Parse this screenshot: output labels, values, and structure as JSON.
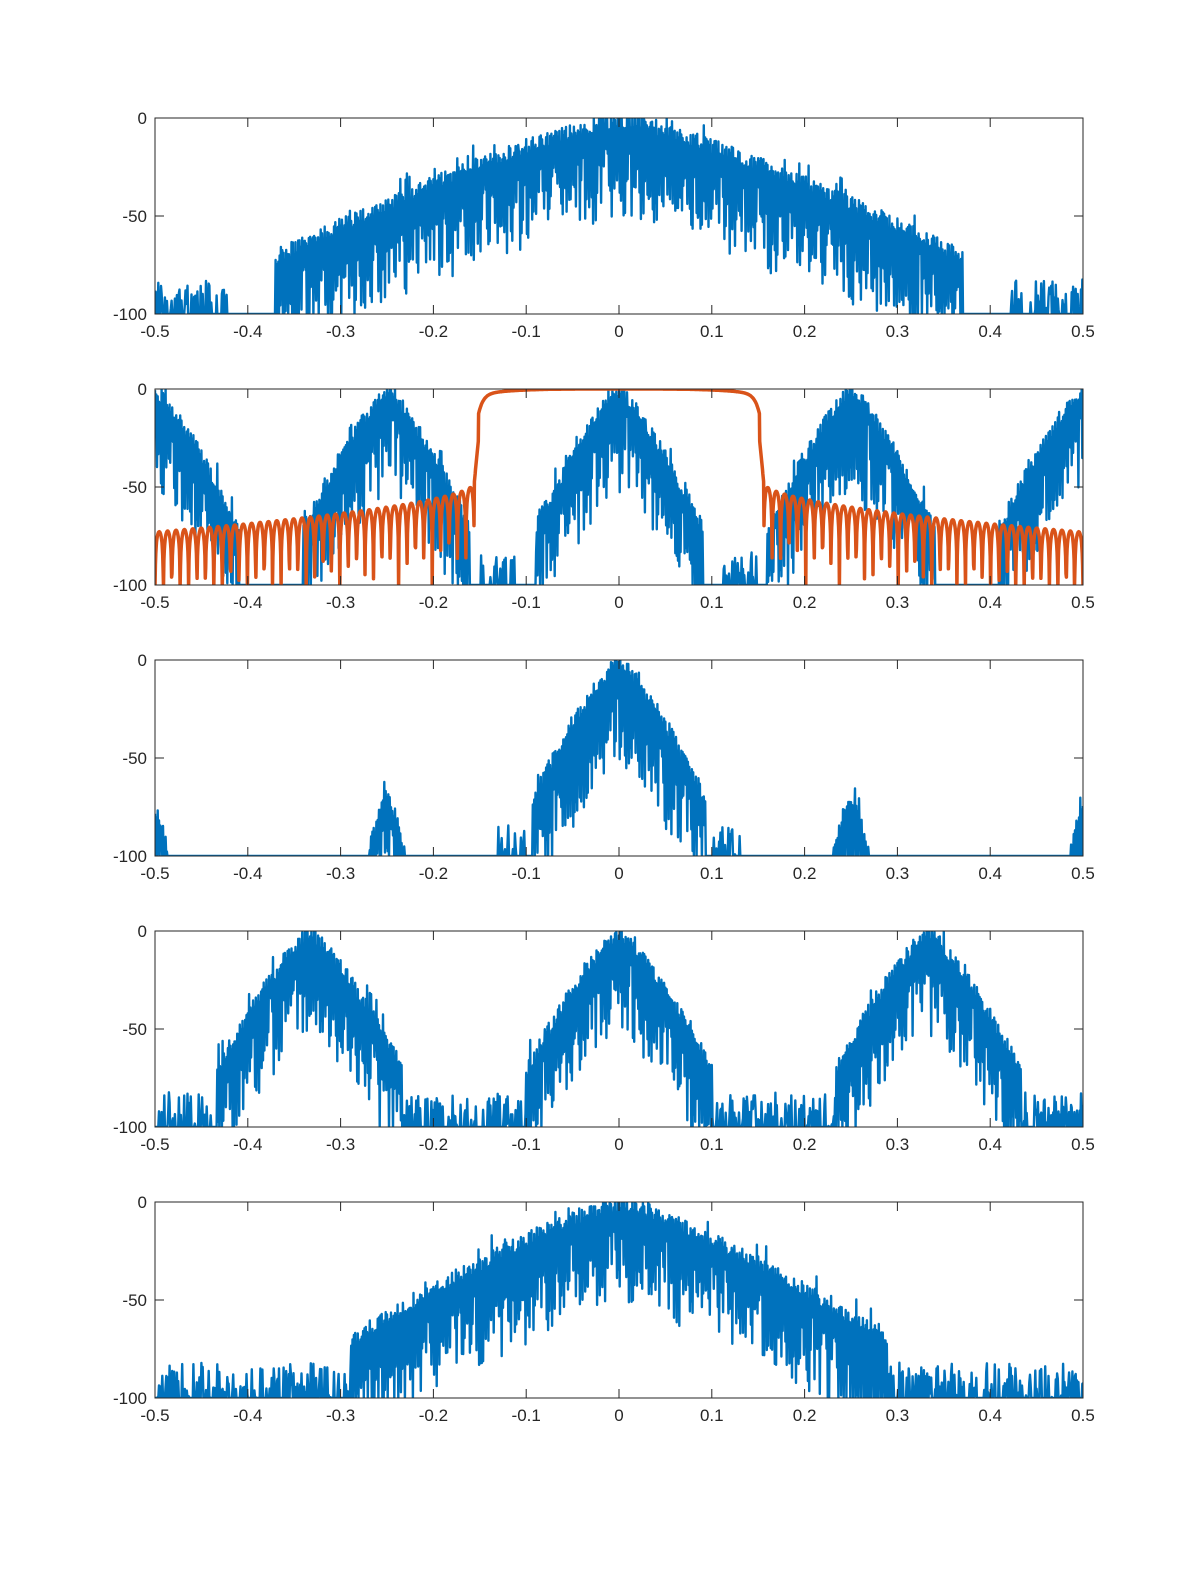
{
  "chart_data": [
    {
      "type": "line",
      "xlim": [
        -0.5,
        0.5
      ],
      "ylim": [
        -100,
        0
      ],
      "xticks": [
        -0.5,
        -0.4,
        -0.3,
        -0.2,
        -0.1,
        0,
        0.1,
        0.2,
        0.3,
        0.4,
        0.5
      ],
      "xtick_labels": [
        "-0.5",
        "-0.4",
        "-0.3",
        "-0.2",
        "-0.1",
        "0",
        "0.1",
        "0.2",
        "0.3",
        "0.4",
        "0.5"
      ],
      "yticks": [
        -100,
        -50,
        0
      ],
      "ytick_labels": [
        "-100",
        "-50",
        "0"
      ],
      "grid": false,
      "series": [
        {
          "color": "#0072BD",
          "style": "noisy-spectrum",
          "lobes": [
            {
              "center": 0,
              "half_width": 0.37,
              "peak": 0
            }
          ],
          "floor_bursts": [
            [
              -0.5,
              -0.42
            ],
            [
              0.42,
              0.5
            ]
          ]
        }
      ]
    },
    {
      "type": "line",
      "xlim": [
        -0.5,
        0.5
      ],
      "ylim": [
        -100,
        0
      ],
      "xticks": [
        -0.5,
        -0.4,
        -0.3,
        -0.2,
        -0.1,
        0,
        0.1,
        0.2,
        0.3,
        0.4,
        0.5
      ],
      "xtick_labels": [
        "-0.5",
        "-0.4",
        "-0.3",
        "-0.2",
        "-0.1",
        "0",
        "0.1",
        "0.2",
        "0.3",
        "0.4",
        "0.5"
      ],
      "yticks": [
        -100,
        -50,
        0
      ],
      "ytick_labels": [
        "-100",
        "-50",
        "0"
      ],
      "grid": false,
      "series": [
        {
          "color": "#0072BD",
          "style": "noisy-spectrum",
          "lobes": [
            {
              "center": -0.5,
              "half_width": 0.09,
              "peak": 0
            },
            {
              "center": -0.25,
              "half_width": 0.09,
              "peak": 0
            },
            {
              "center": 0,
              "half_width": 0.09,
              "peak": 0
            },
            {
              "center": 0.25,
              "half_width": 0.09,
              "peak": 0
            },
            {
              "center": 0.5,
              "half_width": 0.09,
              "peak": 0
            }
          ],
          "floor_bursts": [
            [
              -0.15,
              -0.11
            ],
            [
              0.11,
              0.15
            ]
          ]
        },
        {
          "color": "#D95319",
          "style": "filter-response",
          "passband_edge": 0.156,
          "stopband_level": -73,
          "first_sidelobe": -48,
          "lobe_count_per_side": 38
        }
      ]
    },
    {
      "type": "line",
      "xlim": [
        -0.5,
        0.5
      ],
      "ylim": [
        -100,
        0
      ],
      "xticks": [
        -0.5,
        -0.4,
        -0.3,
        -0.2,
        -0.1,
        0,
        0.1,
        0.2,
        0.3,
        0.4,
        0.5
      ],
      "xtick_labels": [
        "-0.5",
        "-0.4",
        "-0.3",
        "-0.2",
        "-0.1",
        "0",
        "0.1",
        "0.2",
        "0.3",
        "0.4",
        "0.5"
      ],
      "yticks": [
        -100,
        -50,
        0
      ],
      "ytick_labels": [
        "-100",
        "-50",
        "0"
      ],
      "grid": false,
      "series": [
        {
          "color": "#0072BD",
          "style": "noisy-spectrum",
          "lobes": [
            {
              "center": 0,
              "half_width": 0.093,
              "peak": 0
            },
            {
              "center": -0.25,
              "half_width": 0.04,
              "peak": -68
            },
            {
              "center": 0.25,
              "half_width": 0.04,
              "peak": -68
            },
            {
              "center": -0.5,
              "half_width": 0.04,
              "peak": -76
            },
            {
              "center": 0.5,
              "half_width": 0.04,
              "peak": -76
            }
          ],
          "floor_bursts": [
            [
              -0.13,
              -0.1
            ],
            [
              0.1,
              0.13
            ]
          ]
        }
      ]
    },
    {
      "type": "line",
      "xlim": [
        -0.5,
        0.5
      ],
      "ylim": [
        -100,
        0
      ],
      "xticks": [
        -0.5,
        -0.4,
        -0.3,
        -0.2,
        -0.1,
        0,
        0.1,
        0.2,
        0.3,
        0.4,
        0.5
      ],
      "xtick_labels": [
        "-0.5",
        "-0.4",
        "-0.3",
        "-0.2",
        "-0.1",
        "0",
        "0.1",
        "0.2",
        "0.3",
        "0.4",
        "0.5"
      ],
      "yticks": [
        -100,
        -50,
        0
      ],
      "ytick_labels": [
        "-100",
        "-50",
        "0"
      ],
      "grid": false,
      "series": [
        {
          "color": "#0072BD",
          "style": "noisy-spectrum",
          "lobes": [
            {
              "center": -0.333,
              "half_width": 0.1,
              "peak": 0
            },
            {
              "center": 0,
              "half_width": 0.1,
              "peak": 0
            },
            {
              "center": 0.333,
              "half_width": 0.1,
              "peak": 0
            }
          ],
          "floor_bursts": [
            [
              -0.5,
              0.5
            ]
          ]
        }
      ]
    },
    {
      "type": "line",
      "xlim": [
        -0.5,
        0.5
      ],
      "ylim": [
        -100,
        0
      ],
      "xticks": [
        -0.5,
        -0.4,
        -0.3,
        -0.2,
        -0.1,
        0,
        0.1,
        0.2,
        0.3,
        0.4,
        0.5
      ],
      "xtick_labels": [
        "-0.5",
        "-0.4",
        "-0.3",
        "-0.2",
        "-0.1",
        "0",
        "0.1",
        "0.2",
        "0.3",
        "0.4",
        "0.5"
      ],
      "yticks": [
        -100,
        -50,
        0
      ],
      "ytick_labels": [
        "-100",
        "-50",
        "0"
      ],
      "grid": false,
      "series": [
        {
          "color": "#0072BD",
          "style": "noisy-spectrum",
          "lobes": [
            {
              "center": 0,
              "half_width": 0.29,
              "peak": 0
            }
          ],
          "floor_bursts": [
            [
              -0.5,
              0.5
            ]
          ]
        }
      ]
    }
  ]
}
